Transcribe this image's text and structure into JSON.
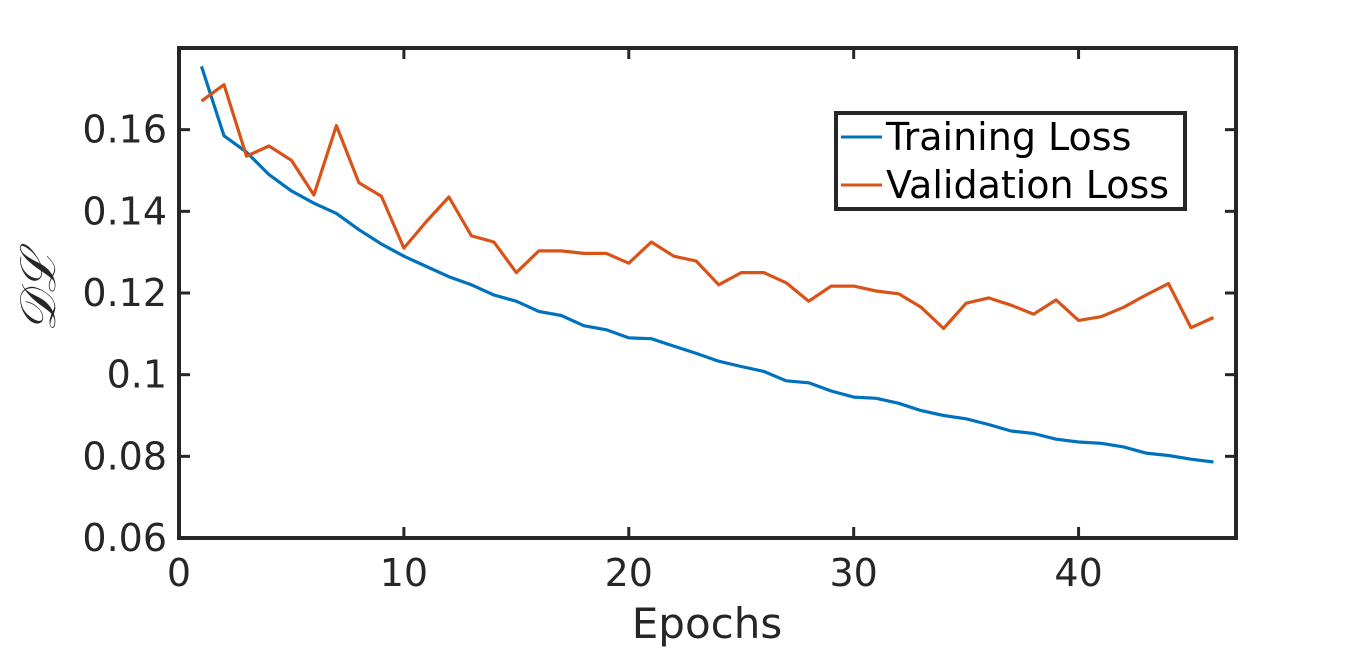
{
  "chart_data": {
    "type": "line",
    "title": "",
    "xlabel": "Epochs",
    "ylabel": "𝒟ℒ",
    "xlim": [
      0,
      47
    ],
    "ylim": [
      0.06,
      0.18
    ],
    "xticks": [
      0,
      10,
      20,
      30,
      40
    ],
    "xtick_labels": [
      "0",
      "10",
      "20",
      "30",
      "40"
    ],
    "yticks": [
      0.06,
      0.08,
      0.1,
      0.12,
      0.14,
      0.16
    ],
    "ytick_labels": [
      "0.06",
      "0.08",
      "0.1",
      "0.12",
      "0.14",
      "0.16"
    ],
    "grid": false,
    "legend_position": "top-right",
    "x": [
      1,
      2,
      3,
      4,
      5,
      6,
      7,
      8,
      9,
      10,
      11,
      12,
      13,
      14,
      15,
      16,
      17,
      18,
      19,
      20,
      21,
      22,
      23,
      24,
      25,
      26,
      27,
      28,
      29,
      30,
      31,
      32,
      33,
      34,
      35,
      36,
      37,
      38,
      39,
      40,
      41,
      42,
      43,
      44,
      45,
      46
    ],
    "series": [
      {
        "name": "Training Loss",
        "color": "#0072BD",
        "values": [
          0.1755,
          0.1585,
          0.1545,
          0.149,
          0.145,
          0.142,
          0.1395,
          0.1355,
          0.132,
          0.129,
          0.1265,
          0.124,
          0.122,
          0.1195,
          0.118,
          0.1155,
          0.1145,
          0.112,
          0.111,
          0.109,
          0.1088,
          0.107,
          0.1052,
          0.1033,
          0.102,
          0.1008,
          0.0985,
          0.098,
          0.096,
          0.0945,
          0.0942,
          0.093,
          0.0912,
          0.09,
          0.0892,
          0.0878,
          0.0862,
          0.0856,
          0.0842,
          0.0835,
          0.0832,
          0.0823,
          0.0808,
          0.0802,
          0.0793,
          0.0786
        ]
      },
      {
        "name": "Validation Loss",
        "color": "#D95319",
        "values": [
          0.167,
          0.171,
          0.1535,
          0.156,
          0.1525,
          0.144,
          0.161,
          0.147,
          0.1437,
          0.131,
          0.1375,
          0.1435,
          0.134,
          0.1325,
          0.125,
          0.1303,
          0.1303,
          0.1297,
          0.1297,
          0.1273,
          0.1325,
          0.129,
          0.1278,
          0.122,
          0.125,
          0.125,
          0.1225,
          0.118,
          0.1217,
          0.1217,
          0.1205,
          0.1198,
          0.1165,
          0.1113,
          0.1175,
          0.1188,
          0.117,
          0.1148,
          0.1183,
          0.1133,
          0.1142,
          0.1165,
          0.1195,
          0.1223,
          0.1115,
          0.114
        ]
      }
    ]
  }
}
